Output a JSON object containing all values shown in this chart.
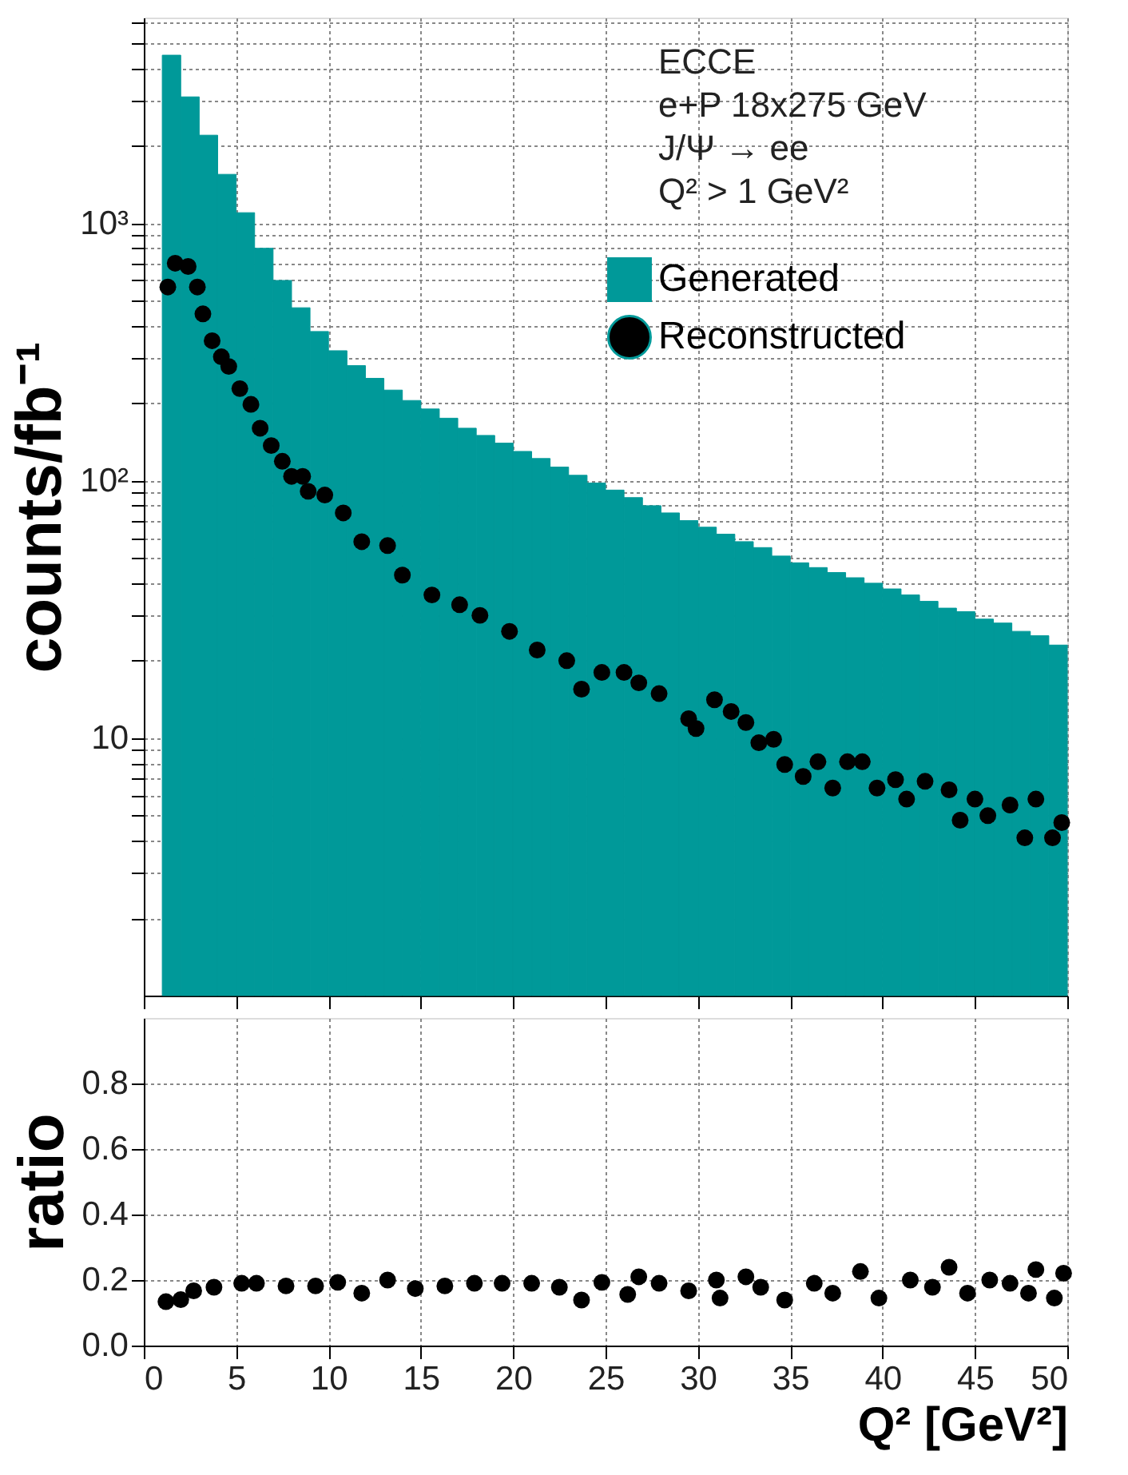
{
  "chart_data": [
    {
      "type": "histogram",
      "ylabel": "counts/fb⁻¹",
      "log": "y",
      "grid": true,
      "legend": "top right",
      "tick_labels": "y",
      "marker": "circle",
      "annotations": [
        "ECCE",
        "e+P 18x275 GeV",
        "J/Ψ → ee",
        "Q² > 1 GeV²"
      ],
      "xlim": [
        0,
        50
      ],
      "xticks": [
        0,
        5,
        10,
        15,
        20,
        25,
        30,
        35,
        40,
        45,
        50
      ],
      "ylim": [
        1,
        6300
      ],
      "yticks": [
        {
          "value": 2,
          "label": null
        },
        {
          "value": 3,
          "label": null
        },
        {
          "value": 4,
          "label": null
        },
        {
          "value": 5,
          "label": null
        },
        {
          "value": 6,
          "label": null
        },
        {
          "value": 7,
          "label": null
        },
        {
          "value": 8,
          "label": null
        },
        {
          "value": 9,
          "label": null
        },
        {
          "value": 10,
          "label": "10"
        },
        {
          "value": 20,
          "label": null
        },
        {
          "value": 30,
          "label": null
        },
        {
          "value": 40,
          "label": null
        },
        {
          "value": 50,
          "label": null
        },
        {
          "value": 60,
          "label": null
        },
        {
          "value": 70,
          "label": null
        },
        {
          "value": 80,
          "label": null
        },
        {
          "value": 90,
          "label": null
        },
        {
          "value": 100,
          "label": "10²"
        },
        {
          "value": 200,
          "label": null
        },
        {
          "value": 300,
          "label": null
        },
        {
          "value": 400,
          "label": null
        },
        {
          "value": 500,
          "label": null
        },
        {
          "value": 600,
          "label": null
        },
        {
          "value": 700,
          "label": null
        },
        {
          "value": 800,
          "label": null
        },
        {
          "value": 900,
          "label": null
        },
        {
          "value": 1000,
          "label": "10³"
        },
        {
          "value": 2000,
          "label": null
        },
        {
          "value": 3000,
          "label": null
        },
        {
          "value": 4000,
          "label": null
        },
        {
          "value": 5000,
          "label": null
        },
        {
          "value": 6000,
          "label": null
        }
      ],
      "series": [
        {
          "name": "Generated",
          "color": "#009999",
          "bins": [
            1,
            2,
            3,
            4,
            5,
            6,
            7,
            8,
            9,
            10,
            11,
            12,
            13,
            14,
            15,
            16,
            17,
            18,
            19,
            20,
            21,
            22,
            23,
            24,
            25,
            26,
            27,
            28,
            29,
            30,
            31,
            32,
            33,
            34,
            35,
            36,
            37,
            38,
            39,
            40,
            41,
            42,
            43,
            44,
            45,
            46,
            47,
            48,
            49,
            50
          ],
          "values": [
            4500,
            3100,
            2200,
            1550,
            1100,
            800,
            600,
            470,
            380,
            320,
            280,
            250,
            225,
            205,
            190,
            175,
            160,
            150,
            140,
            130,
            122,
            113,
            105,
            98,
            92,
            86,
            80,
            75,
            70,
            66,
            62,
            58,
            55,
            51,
            48,
            46,
            44,
            42,
            40,
            38,
            36,
            34,
            32,
            31,
            29,
            28,
            26,
            25,
            23
          ]
        },
        {
          "name": "Reconstructed",
          "type": "scatter",
          "color": "#000000",
          "x": [
            1.3,
            1.7,
            2.4,
            2.9,
            3.2,
            3.7,
            4.2,
            4.6,
            5.2,
            5.8,
            6.3,
            6.9,
            7.5,
            8.0,
            8.6,
            8.9,
            9.8,
            10.8,
            11.8,
            13.2,
            14.0,
            15.6,
            17.1,
            18.2,
            19.8,
            21.3,
            22.9,
            23.7,
            24.8,
            26.0,
            26.8,
            27.9,
            29.5,
            29.9,
            30.9,
            31.8,
            32.6,
            33.3,
            34.1,
            34.7,
            35.7,
            36.5,
            37.3,
            38.1,
            38.9,
            39.7,
            40.7,
            41.3,
            42.3,
            43.6,
            44.2,
            45.0,
            45.7,
            46.9,
            47.7,
            48.3,
            49.2,
            49.7
          ],
          "values": [
            566,
            700,
            680,
            566,
            445,
            350,
            303,
            278,
            228,
            198,
            160,
            137,
            119,
            104,
            104,
            91,
            88,
            75,
            58,
            56,
            43,
            36,
            33,
            30,
            26,
            22,
            20,
            15.5,
            18,
            18,
            16.4,
            14.9,
            11.9,
            10.9,
            14.1,
            12.7,
            11.5,
            9.6,
            9.9,
            7.9,
            7.1,
            8.1,
            6.4,
            8.1,
            8.1,
            6.4,
            6.9,
            5.8,
            6.8,
            6.3,
            4.8,
            5.8,
            5.0,
            5.5,
            4.1,
            5.8,
            4.1,
            4.7
          ]
        }
      ]
    },
    {
      "type": "scatter",
      "ylabel": "ratio",
      "xlabel": "Q² [GeV²]",
      "grid": true,
      "marker": "circle",
      "xlim": [
        0,
        50
      ],
      "xticks": [
        0,
        5,
        10,
        15,
        20,
        25,
        30,
        35,
        40,
        45,
        50
      ],
      "ylim": [
        0,
        1
      ],
      "yticks": [
        {
          "value": 0,
          "label": "0.0"
        },
        0.2,
        0.4,
        0.6,
        0.8
      ],
      "series": [
        {
          "color": "#000000",
          "x": [
            1.2,
            2.0,
            2.7,
            3.8,
            5.3,
            6.1,
            7.7,
            9.3,
            10.5,
            11.8,
            13.2,
            14.7,
            16.3,
            17.9,
            19.4,
            21.0,
            22.5,
            23.7,
            24.8,
            26.2,
            26.8,
            27.9,
            29.5,
            31.0,
            31.2,
            32.6,
            33.4,
            34.7,
            36.3,
            37.3,
            38.8,
            39.8,
            41.5,
            42.7,
            43.6,
            44.6,
            45.8,
            46.9,
            47.9,
            48.3,
            49.3,
            49.8
          ],
          "values": [
            0.134,
            0.14,
            0.167,
            0.178,
            0.19,
            0.19,
            0.182,
            0.182,
            0.193,
            0.16,
            0.2,
            0.174,
            0.182,
            0.19,
            0.19,
            0.19,
            0.178,
            0.139,
            0.193,
            0.156,
            0.21,
            0.19,
            0.167,
            0.2,
            0.145,
            0.21,
            0.178,
            0.139,
            0.19,
            0.16,
            0.226,
            0.145,
            0.2,
            0.178,
            0.239,
            0.16,
            0.2,
            0.19,
            0.16,
            0.232,
            0.145,
            0.221
          ]
        }
      ]
    }
  ]
}
